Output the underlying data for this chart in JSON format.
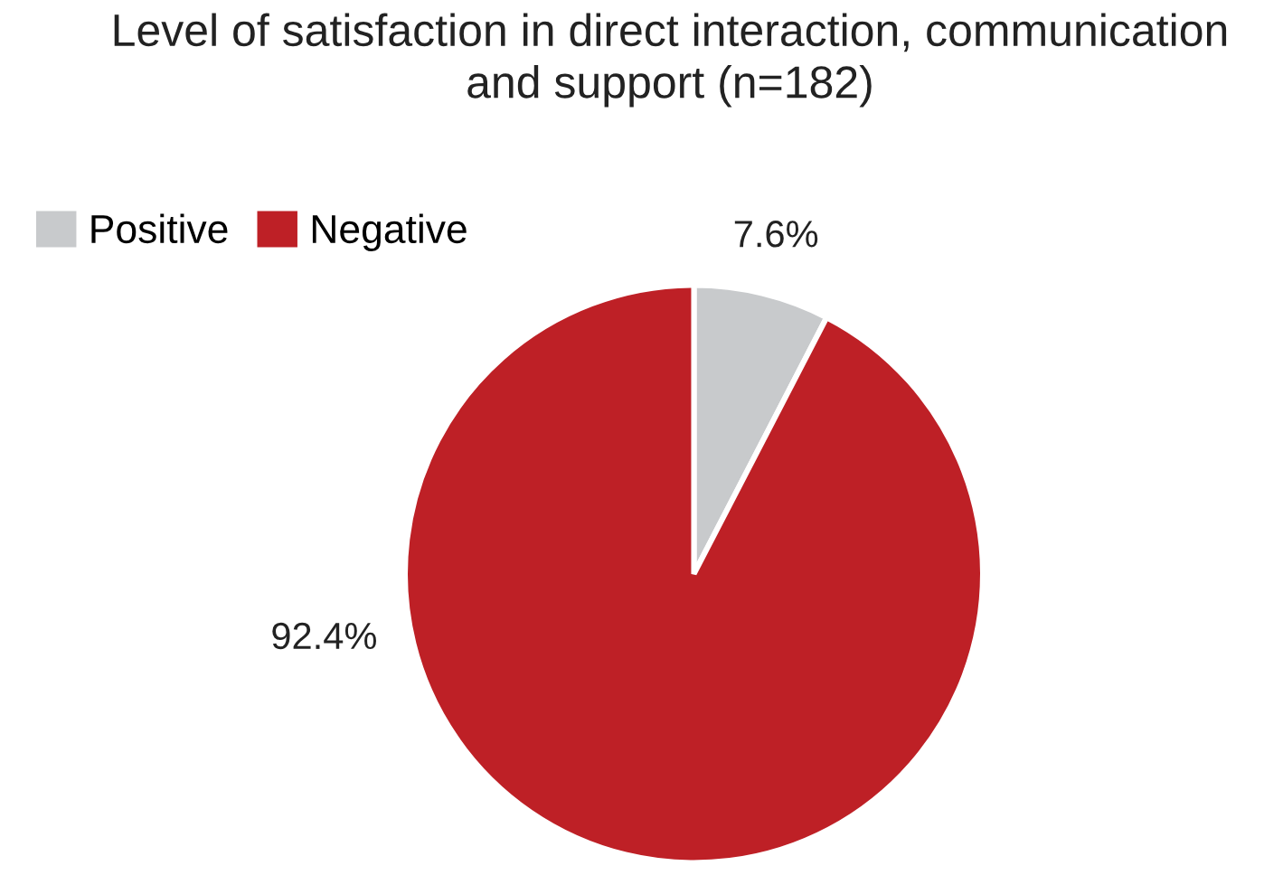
{
  "chart_data": {
    "type": "pie",
    "title": "Level of satisfaction in direct interaction, communication\nand support (n=182)",
    "categories": [
      "Positive",
      "Negative"
    ],
    "values": [
      7.6,
      92.4
    ],
    "colors": [
      "#c8cacc",
      "#be2026"
    ],
    "value_labels": [
      "7.6%",
      "92.4%"
    ],
    "legend": "top left"
  }
}
